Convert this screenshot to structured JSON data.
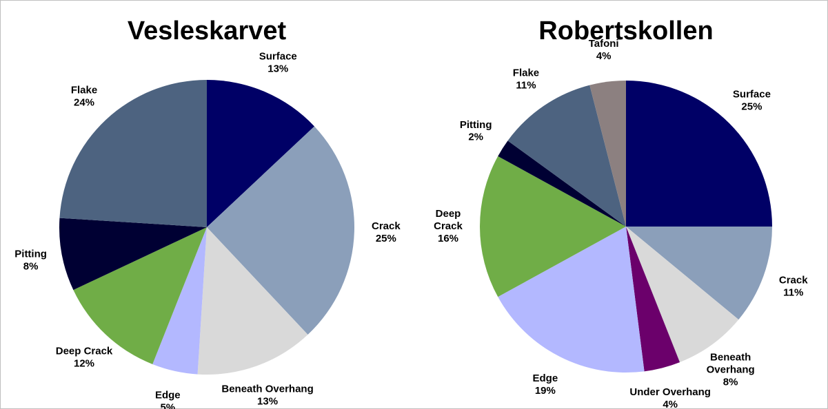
{
  "chart_data": [
    {
      "type": "pie",
      "title": "Vesleskarvet",
      "categories": [
        "Surface",
        "Crack",
        "Beneath Overhang",
        "Edge",
        "Deep Crack",
        "Pitting",
        "Flake"
      ],
      "values": [
        13,
        25,
        13,
        5,
        12,
        8,
        24
      ],
      "value_labels": [
        "13%",
        "25%",
        "13%",
        "5%",
        "12%",
        "8%",
        "24%"
      ],
      "colors": [
        "#000066",
        "#8b9fba",
        "#d9d9d9",
        "#b3b8ff",
        "#70ad47",
        "#000033",
        "#4d6380"
      ]
    },
    {
      "type": "pie",
      "title": "Robertskollen",
      "categories": [
        "Surface",
        "Crack",
        "Beneath Overhang",
        "Under Overhang",
        "Edge",
        "Deep Crack",
        "Pitting",
        "Flake",
        "Tafoni"
      ],
      "values": [
        25,
        11,
        8,
        4,
        19,
        16,
        2,
        11,
        4
      ],
      "value_labels": [
        "25%",
        "11%",
        "8%",
        "4%",
        "19%",
        "16%",
        "2%",
        "11%",
        "4%"
      ],
      "colors": [
        "#000066",
        "#8b9fba",
        "#d9d9d9",
        "#6b006b",
        "#b3b8ff",
        "#70ad47",
        "#000033",
        "#4d6380",
        "#8c8080"
      ]
    }
  ]
}
